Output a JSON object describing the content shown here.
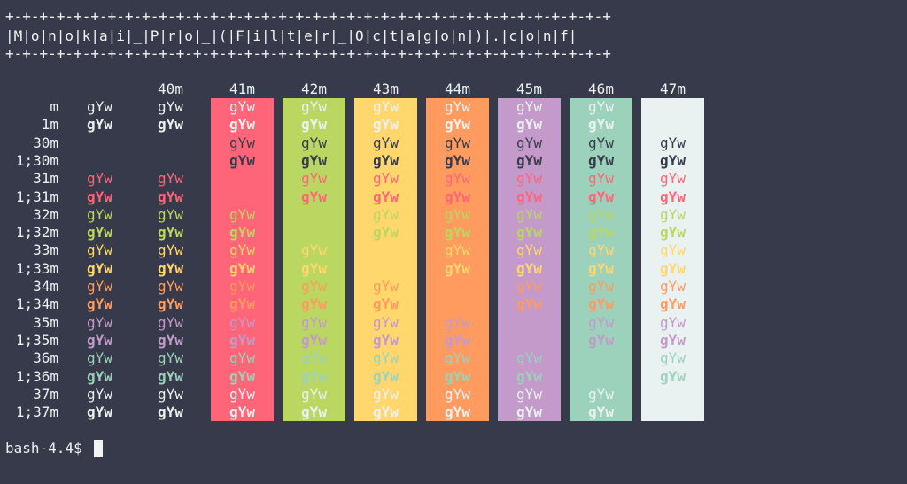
{
  "banner": {
    "top": "+-+-+-+-+-+-+-+-+-+-+-+-+-+-+-+-+-+-+-+-+-+-+-+-+-+-+-+-+-+-+-+-+-+-+-+",
    "title": "|M|o|n|o|k|a|i|_|P|r|o|_|(|F|i|l|t|e|r|_|O|c|t|a|g|o|n|)|.|c|o|n|f|",
    "bottom": "+-+-+-+-+-+-+-+-+-+-+-+-+-+-+-+-+-+-+-+-+-+-+-+-+-+-+-+-+-+-+-+-+-+-+-+"
  },
  "sample_text": "gYw",
  "column_headers": [
    "",
    "40m",
    "41m",
    "42m",
    "43m",
    "44m",
    "45m",
    "46m",
    "47m"
  ],
  "background_colors": [
    "#363a4a",
    "#363a4a",
    "#ff6578",
    "#bad761",
    "#ffd76d",
    "#ff9b5e",
    "#c39ac9",
    "#9cd1bb",
    "#eaf2f1"
  ],
  "rows": [
    {
      "label": "m",
      "color": "#eaf2f1",
      "bold": false,
      "visible": [
        1,
        1,
        1,
        1,
        1,
        1,
        1,
        1,
        0
      ]
    },
    {
      "label": "1m",
      "color": "#eaf2f1",
      "bold": true,
      "visible": [
        1,
        1,
        1,
        1,
        1,
        1,
        1,
        1,
        0
      ]
    },
    {
      "label": "30m",
      "color": "#363a4a",
      "bold": false,
      "visible": [
        0,
        0,
        1,
        1,
        1,
        1,
        1,
        1,
        1
      ]
    },
    {
      "label": "1;30m",
      "color": "#363a4a",
      "bold": true,
      "visible": [
        0,
        0,
        1,
        1,
        1,
        1,
        1,
        1,
        1
      ]
    },
    {
      "label": "31m",
      "color": "#ff6578",
      "bold": false,
      "visible": [
        1,
        1,
        0,
        1,
        1,
        1,
        1,
        1,
        1
      ]
    },
    {
      "label": "1;31m",
      "color": "#ff6578",
      "bold": true,
      "visible": [
        1,
        1,
        0,
        1,
        1,
        1,
        1,
        1,
        1
      ]
    },
    {
      "label": "32m",
      "color": "#bad761",
      "bold": false,
      "visible": [
        1,
        1,
        1,
        0,
        1,
        1,
        1,
        1,
        1
      ]
    },
    {
      "label": "1;32m",
      "color": "#bad761",
      "bold": true,
      "visible": [
        1,
        1,
        1,
        0,
        1,
        1,
        1,
        1,
        1
      ]
    },
    {
      "label": "33m",
      "color": "#ffd76d",
      "bold": false,
      "visible": [
        1,
        1,
        1,
        1,
        0,
        1,
        1,
        1,
        1
      ]
    },
    {
      "label": "1;33m",
      "color": "#ffd76d",
      "bold": true,
      "visible": [
        1,
        1,
        1,
        1,
        0,
        1,
        1,
        1,
        1
      ]
    },
    {
      "label": "34m",
      "color": "#ff9b5e",
      "bold": false,
      "visible": [
        1,
        1,
        1,
        1,
        1,
        0,
        1,
        1,
        1
      ]
    },
    {
      "label": "1;34m",
      "color": "#ff9b5e",
      "bold": true,
      "visible": [
        1,
        1,
        1,
        1,
        1,
        0,
        1,
        1,
        1
      ]
    },
    {
      "label": "35m",
      "color": "#c39ac9",
      "bold": false,
      "visible": [
        1,
        1,
        1,
        1,
        1,
        1,
        0,
        1,
        1
      ]
    },
    {
      "label": "1;35m",
      "color": "#c39ac9",
      "bold": true,
      "visible": [
        1,
        1,
        1,
        1,
        1,
        1,
        0,
        1,
        1
      ]
    },
    {
      "label": "36m",
      "color": "#9cd1bb",
      "bold": false,
      "visible": [
        1,
        1,
        1,
        1,
        1,
        1,
        1,
        0,
        1
      ]
    },
    {
      "label": "1;36m",
      "color": "#9cd1bb",
      "bold": true,
      "visible": [
        1,
        1,
        1,
        1,
        1,
        1,
        1,
        0,
        1
      ]
    },
    {
      "label": "37m",
      "color": "#eaf2f1",
      "bold": false,
      "visible": [
        1,
        1,
        1,
        1,
        1,
        1,
        1,
        1,
        0
      ]
    },
    {
      "label": "1;37m",
      "color": "#eaf2f1",
      "bold": true,
      "visible": [
        1,
        1,
        1,
        1,
        1,
        1,
        1,
        1,
        0
      ]
    }
  ],
  "prompt": "bash-4.4$"
}
